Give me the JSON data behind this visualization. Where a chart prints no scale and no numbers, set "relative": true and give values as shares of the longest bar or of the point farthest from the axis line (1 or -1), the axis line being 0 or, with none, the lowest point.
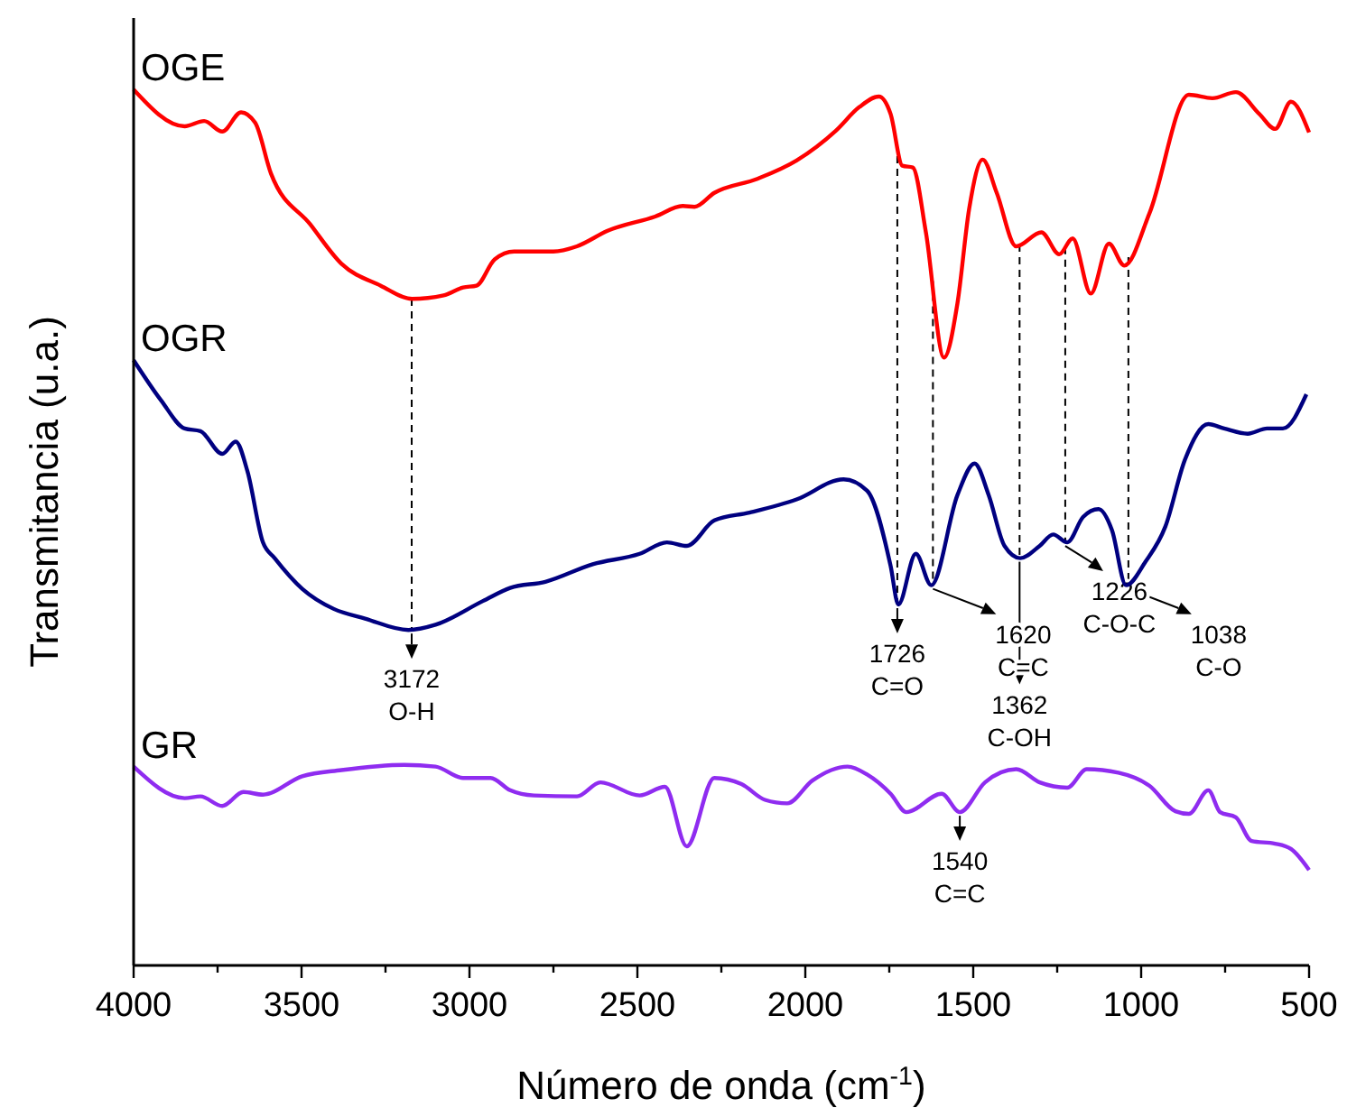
{
  "chart_data": {
    "type": "line",
    "relative": true,
    "xlabel": "Número de onda (cm$^{-1}$)",
    "ylabel": "Transmitancia (u.a.)",
    "grid": false,
    "xlim": [
      4000,
      500
    ],
    "xticks": [
      4000,
      {
        "value": 3750,
        "label": null
      },
      3500,
      {
        "value": 3250,
        "label": null
      },
      3000,
      {
        "value": 2750,
        "label": null
      },
      2500,
      {
        "value": 2250,
        "label": null
      },
      2000,
      {
        "value": 1750,
        "label": null
      },
      1500,
      {
        "value": 1250,
        "label": null
      },
      1000,
      {
        "value": 750,
        "label": null
      },
      500
    ],
    "series": [
      {
        "name": "OGE",
        "color": "#ff0000",
        "x": [
          4000,
          3848,
          3790,
          3736,
          3680,
          3638,
          3591,
          3474,
          3381,
          3264,
          3171,
          3077,
          3019,
          2979,
          2925,
          2867,
          2750,
          2680,
          2587,
          2447,
          2365,
          2330,
          2271,
          2143,
          2026,
          1909,
          1839,
          1781,
          1746,
          1711,
          1680,
          1641,
          1587,
          1547,
          1512,
          1472,
          1430,
          1372,
          1297,
          1244,
          1204,
          1150,
          1096,
          1050,
          975,
          858,
          788,
          718,
          648,
          601,
          554,
          500
        ],
        "values": [
          1.0,
          0.958,
          0.964,
          0.952,
          0.974,
          0.962,
          0.904,
          0.846,
          0.801,
          0.776,
          0.761,
          0.765,
          0.774,
          0.776,
          0.806,
          0.815,
          0.815,
          0.821,
          0.839,
          0.855,
          0.867,
          0.866,
          0.882,
          0.898,
          0.919,
          0.953,
          0.98,
          0.992,
          0.972,
          0.913,
          0.911,
          0.837,
          0.694,
          0.756,
          0.864,
          0.92,
          0.882,
          0.821,
          0.837,
          0.812,
          0.83,
          0.767,
          0.824,
          0.799,
          0.859,
          0.994,
          0.99,
          0.997,
          0.972,
          0.955,
          0.986,
          0.951
        ]
      },
      {
        "name": "OGR",
        "color": "#000080",
        "x": [
          4000,
          3918,
          3848,
          3801,
          3736,
          3696,
          3661,
          3615,
          3580,
          3498,
          3404,
          3311,
          3182,
          3101,
          2960,
          2879,
          2774,
          2633,
          2493,
          2412,
          2353,
          2271,
          2166,
          2026,
          1886,
          1816,
          1746,
          1723,
          1671,
          1625,
          1547,
          1496,
          1454,
          1407,
          1360,
          1302,
          1262,
          1220,
          1173,
          1127,
          1087,
          1045,
          987,
          928,
          870,
          800,
          753,
          683,
          625,
          578,
          508
        ],
        "values": [
          0.691,
          0.645,
          0.613,
          0.61,
          0.584,
          0.598,
          0.564,
          0.483,
          0.465,
          0.43,
          0.407,
          0.396,
          0.383,
          0.389,
          0.416,
          0.431,
          0.438,
          0.458,
          0.47,
          0.483,
          0.479,
          0.508,
          0.517,
          0.532,
          0.555,
          0.542,
          0.456,
          0.412,
          0.47,
          0.434,
          0.537,
          0.573,
          0.537,
          0.479,
          0.465,
          0.479,
          0.492,
          0.483,
          0.512,
          0.521,
          0.497,
          0.434,
          0.461,
          0.501,
          0.577,
          0.618,
          0.613,
          0.607,
          0.613,
          0.613,
          0.652
        ]
      },
      {
        "name": "GR",
        "color": "#8f2cf0",
        "x": [
          4000,
          3848,
          3801,
          3736,
          3673,
          3615,
          3498,
          3381,
          3194,
          3101,
          3019,
          2937,
          2879,
          2808,
          2680,
          2610,
          2493,
          2418,
          2353,
          2271,
          2190,
          2120,
          2054,
          1979,
          1874,
          1816,
          1746,
          1699,
          1594,
          1540,
          1465,
          1372,
          1302,
          1220,
          1162,
          1068,
          975,
          898,
          858,
          800,
          765,
          718,
          671,
          601,
          554,
          500
        ],
        "values": [
          0.227,
          0.191,
          0.193,
          0.182,
          0.198,
          0.195,
          0.216,
          0.223,
          0.229,
          0.227,
          0.214,
          0.214,
          0.2,
          0.194,
          0.193,
          0.209,
          0.194,
          0.204,
          0.136,
          0.214,
          0.207,
          0.189,
          0.185,
          0.211,
          0.227,
          0.218,
          0.196,
          0.175,
          0.196,
          0.175,
          0.209,
          0.224,
          0.209,
          0.203,
          0.224,
          0.22,
          0.205,
          0.176,
          0.173,
          0.2,
          0.175,
          0.169,
          0.142,
          0.139,
          0.133,
          0.109
        ]
      }
    ],
    "annotations": [
      {
        "text": "3172\nO-H",
        "x": 3172,
        "y": 0.383
      },
      {
        "text": "1726\nC=O",
        "x": 1726,
        "y": 0.412
      },
      {
        "text": "1620\nC=C",
        "x": 1620,
        "y": 0.434
      },
      {
        "text": "1362\nC-OH",
        "x": 1362,
        "y": 0.465
      },
      {
        "text": "1226\nC-O-C",
        "x": 1226,
        "y": 0.483
      },
      {
        "text": "1038\nC-O",
        "x": 1038,
        "y": 0.434
      },
      {
        "text": "1540\nC=C",
        "x": 1540,
        "y": 0.175
      }
    ]
  }
}
